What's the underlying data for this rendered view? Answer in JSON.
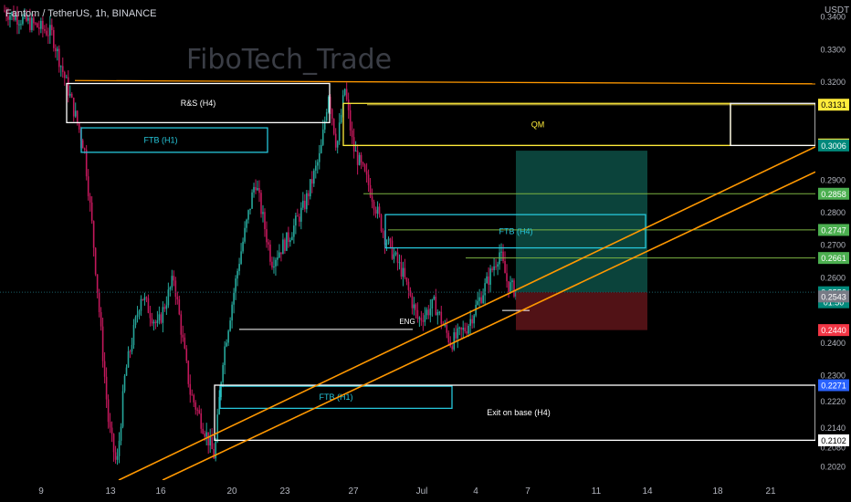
{
  "header": {
    "symbol_line": "Fantom / TetherUS, 1h, BINANCE",
    "watermark": "FiboTech_Trade",
    "unit": "USDT"
  },
  "colors": {
    "background": "#000000",
    "up_candle": "#26a69a",
    "down_candle": "#c2185b",
    "orange_line": "#ff9800",
    "yellow": "#ffeb3b",
    "cyan": "#26c6da",
    "white": "#ffffff",
    "green_label": "#4caf50",
    "red_label": "#f23645",
    "teal_label": "#00897b",
    "grey_label": "#787b86",
    "blue_label": "#2962ff",
    "tp_zone": "#0d4f45",
    "sl_zone": "#5a1418"
  },
  "chart_data": {
    "type": "candlestick",
    "ylim": [
      0.198,
      0.3452
    ],
    "y_ticks": [
      "0.3400",
      "0.3300",
      "0.3200",
      "0.2900",
      "0.2800",
      "0.2700",
      "0.2600",
      "0.2400",
      "0.2300",
      "0.2220",
      "0.2140",
      "0.2080",
      "0.2020"
    ],
    "y_tick_values": [
      0.34,
      0.33,
      0.32,
      0.29,
      0.28,
      0.27,
      0.26,
      0.24,
      0.23,
      0.222,
      0.214,
      0.208,
      0.202
    ],
    "x_ticks": [
      "9",
      "13",
      "16",
      "20",
      "23",
      "27",
      "Jul",
      "4",
      "7",
      "11",
      "14",
      "18",
      "21"
    ],
    "price_path": [
      [
        0.0,
        0.342
      ],
      [
        0.06,
        0.335
      ],
      [
        0.08,
        0.318
      ],
      [
        0.1,
        0.3
      ],
      [
        0.11,
        0.275
      ],
      [
        0.12,
        0.245
      ],
      [
        0.13,
        0.215
      ],
      [
        0.14,
        0.202
      ],
      [
        0.15,
        0.23
      ],
      [
        0.17,
        0.255
      ],
      [
        0.19,
        0.245
      ],
      [
        0.21,
        0.26
      ],
      [
        0.23,
        0.225
      ],
      [
        0.25,
        0.212
      ],
      [
        0.26,
        0.205
      ],
      [
        0.27,
        0.235
      ],
      [
        0.29,
        0.265
      ],
      [
        0.31,
        0.29
      ],
      [
        0.33,
        0.265
      ],
      [
        0.35,
        0.272
      ],
      [
        0.37,
        0.282
      ],
      [
        0.39,
        0.298
      ],
      [
        0.4,
        0.317
      ],
      [
        0.41,
        0.3
      ],
      [
        0.42,
        0.318
      ],
      [
        0.43,
        0.3
      ],
      [
        0.45,
        0.288
      ],
      [
        0.47,
        0.272
      ],
      [
        0.49,
        0.262
      ],
      [
        0.51,
        0.247
      ],
      [
        0.53,
        0.252
      ],
      [
        0.55,
        0.24
      ],
      [
        0.57,
        0.245
      ],
      [
        0.59,
        0.256
      ],
      [
        0.61,
        0.268
      ],
      [
        0.62,
        0.258
      ],
      [
        0.63,
        0.256
      ]
    ],
    "levels": [
      {
        "price": "0.3131",
        "value": 0.3131,
        "label_color": "#ffeb3b",
        "text_color": "#000"
      },
      {
        "price": "0.3009",
        "value": 0.3009,
        "label_color": "#ffeb3b",
        "text_color": "#000"
      },
      {
        "price": "0.3008",
        "value": 0.3008,
        "label_color": "#ffeb3b",
        "text_color": "#000"
      },
      {
        "price": "0.3006",
        "value": 0.3006,
        "label_color": "#00897b",
        "text_color": "#fff"
      },
      {
        "price": "0.2858",
        "value": 0.2858,
        "label_color": "#4caf50",
        "text_color": "#fff"
      },
      {
        "price": "0.2747",
        "value": 0.2747,
        "label_color": "#4caf50",
        "text_color": "#fff"
      },
      {
        "price": "0.2661",
        "value": 0.2661,
        "label_color": "#4caf50",
        "text_color": "#fff"
      },
      {
        "price": "0.2556",
        "value": 0.2556,
        "label_color": "#00897b",
        "text_color": "#fff",
        "sub": "01:50"
      },
      {
        "price": "0.2543",
        "value": 0.2543,
        "label_color": "#787b86",
        "text_color": "#fff"
      },
      {
        "price": "0.2440",
        "value": 0.244,
        "label_color": "#f23645",
        "text_color": "#fff"
      },
      {
        "price": "0.2271",
        "value": 0.2271,
        "label_color": "#2962ff",
        "text_color": "#fff"
      },
      {
        "price": "0.2102",
        "value": 0.2102,
        "label_color": "#ffffff",
        "text_color": "#000"
      }
    ],
    "annotations": [
      {
        "text": "R&S (H4)",
        "color": "#ffffff"
      },
      {
        "text": "FTB (H1)",
        "color": "#26c6da"
      },
      {
        "text": "QM",
        "color": "#ffeb3b"
      },
      {
        "text": "FTB (H4)",
        "color": "#26c6da"
      },
      {
        "text": "ENG",
        "color": "#ffffff"
      },
      {
        "text": "FTB (H1)",
        "color": "#26c6da"
      },
      {
        "text": "Exit on base (H4)",
        "color": "#ffffff"
      }
    ],
    "position": {
      "entry": 0.2556,
      "target": 0.299,
      "stop": 0.244
    }
  }
}
